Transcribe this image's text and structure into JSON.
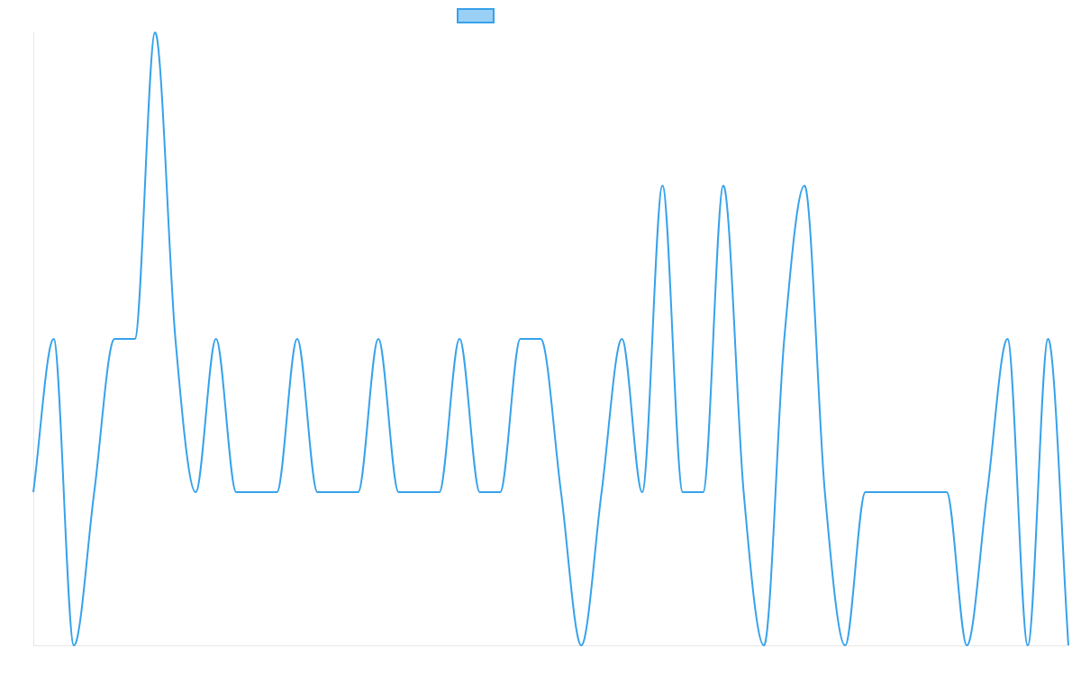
{
  "chart_data": {
    "type": "line",
    "x": [
      0,
      1,
      2,
      3,
      4,
      5,
      6,
      7,
      8,
      9,
      10,
      11,
      12,
      13,
      14,
      15,
      16,
      17,
      18,
      19,
      20,
      21,
      22,
      23,
      24,
      25,
      26,
      27,
      28,
      29,
      30,
      31,
      32,
      33,
      34,
      35,
      36,
      37,
      38,
      39,
      40,
      41,
      42,
      43,
      44,
      45,
      46,
      47,
      48,
      49,
      50,
      51
    ],
    "series": [
      {
        "name": "",
        "values": [
          1,
          2,
          0,
          1,
          2,
          2,
          4,
          2,
          1,
          2,
          1,
          1,
          1,
          2,
          1,
          1,
          1,
          2,
          1,
          1,
          1,
          2,
          1,
          1,
          2,
          2,
          1,
          0,
          1,
          2,
          1,
          3,
          1,
          1,
          3,
          1,
          0,
          2,
          3,
          1,
          0,
          1,
          1,
          1,
          1,
          1,
          0,
          1,
          2,
          0,
          2,
          0
        ],
        "color": "#36a2eb",
        "fill": "#9ad0f5"
      }
    ],
    "ylim": [
      0,
      4
    ],
    "grid": false,
    "legend": "top-center",
    "title": "",
    "xlabel": "",
    "ylabel": ""
  }
}
